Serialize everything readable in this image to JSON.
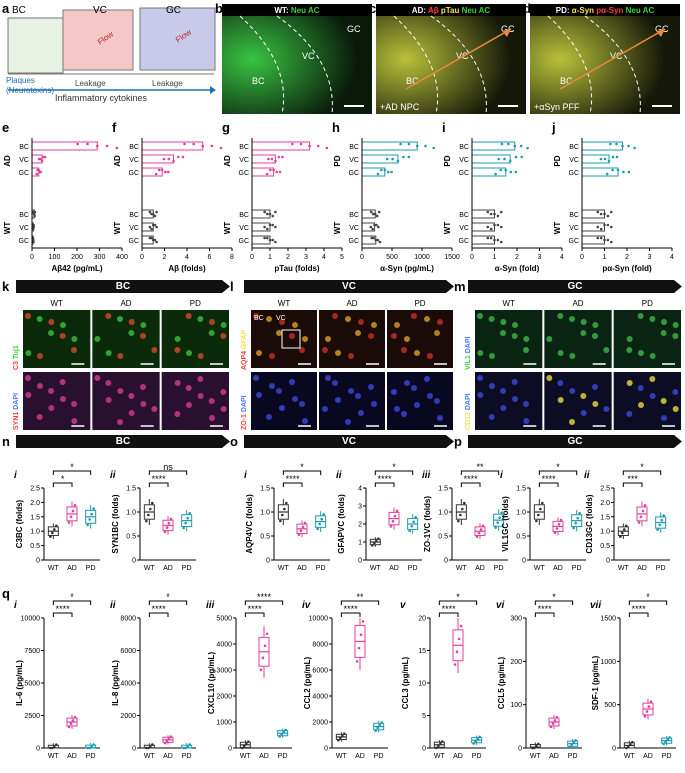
{
  "panel_a": {
    "letter": "a",
    "bc": "BC",
    "vc": "VC",
    "gc": "GC",
    "flow": "Flow",
    "plaques": "Plaques",
    "neurotoxins": "(Neurotoxins)",
    "leakage": "Leakage",
    "cytokines": "Inflammatory cytokines"
  },
  "micro_top": [
    {
      "letter": "b",
      "title_parts": [
        {
          "t": "WT:",
          "c": "#ffffff"
        },
        {
          "t": " Neu AC",
          "c": "#35d435"
        }
      ],
      "labels": [
        "BC",
        "VC",
        "GC"
      ],
      "note": ""
    },
    {
      "letter": "c",
      "title_parts": [
        {
          "t": "AD:",
          "c": "#ffffff"
        },
        {
          "t": " Aβ",
          "c": "#ff4040"
        },
        {
          "t": " pTau",
          "c": "#ffe24a"
        },
        {
          "t": " Neu AC",
          "c": "#35d435"
        }
      ],
      "labels": [
        "BC",
        "VC",
        "GC"
      ],
      "note": "+AD NPC"
    },
    {
      "letter": "d",
      "title_parts": [
        {
          "t": "PD:",
          "c": "#ffffff"
        },
        {
          "t": " α-Syn",
          "c": "#ffe24a"
        },
        {
          "t": " pα-Syn",
          "c": "#ff4040"
        },
        {
          "t": " Neu AC",
          "c": "#35d435"
        }
      ],
      "labels": [
        "BC",
        "VC",
        "GC"
      ],
      "note": "+αSyn PFF"
    }
  ],
  "bar_panels": [
    {
      "letter": "e",
      "group_top": "AD",
      "group_bottom": "WT",
      "xlabel": "Aβ42 (pg/mL)",
      "ticks": [
        "0",
        "100",
        "200",
        "300",
        "400"
      ],
      "color": "#e0409a"
    },
    {
      "letter": "f",
      "group_top": "AD",
      "group_bottom": "WT",
      "xlabel": "Aβ (folds)",
      "ticks": [
        "0",
        "2",
        "4",
        "6",
        "8"
      ],
      "color": "#e0409a"
    },
    {
      "letter": "g",
      "group_top": "AD",
      "group_bottom": "WT",
      "xlabel": "pTau (folds)",
      "ticks": [
        "0",
        "1",
        "2",
        "3",
        "4",
        "5"
      ],
      "color": "#e0409a"
    },
    {
      "letter": "h",
      "group_top": "PD",
      "group_bottom": "WT",
      "xlabel": "α-Syn (pg/mL)",
      "ticks": [
        "0",
        "500",
        "1000",
        "1500"
      ],
      "color": "#1e9ab0"
    },
    {
      "letter": "i",
      "group_top": "PD",
      "group_bottom": "WT",
      "xlabel": "α-Syn (fold)",
      "ticks": [
        "0",
        "1",
        "2",
        "3",
        "4"
      ],
      "color": "#1e9ab0"
    },
    {
      "letter": "j",
      "group_top": "PD",
      "group_bottom": "WT",
      "xlabel": "pα-Syn (fold)",
      "ticks": [
        "0",
        "1",
        "2",
        "3",
        "4"
      ],
      "color": "#1e9ab0"
    }
  ],
  "row_labels": [
    "BC",
    "VC",
    "GC"
  ],
  "chart_data": [
    {
      "type": "bar",
      "panel": "e",
      "categories": [
        "BC",
        "VC",
        "GC"
      ],
      "series": [
        {
          "name": "AD",
          "values": [
            290,
            45,
            30
          ]
        },
        {
          "name": "WT",
          "values": [
            10,
            6,
            5
          ]
        }
      ],
      "xlabel": "Aβ42 (pg/mL)",
      "xlim": [
        0,
        400
      ]
    },
    {
      "type": "bar",
      "panel": "f",
      "categories": [
        "BC",
        "VC",
        "GC"
      ],
      "series": [
        {
          "name": "AD",
          "values": [
            5.4,
            2.8,
            1.8
          ]
        },
        {
          "name": "WT",
          "values": [
            1,
            1,
            1
          ]
        }
      ],
      "xlabel": "Aβ (folds)",
      "xlim": [
        0,
        8
      ]
    },
    {
      "type": "bar",
      "panel": "g",
      "categories": [
        "BC",
        "VC",
        "GC"
      ],
      "series": [
        {
          "name": "AD",
          "values": [
            3.2,
            1.3,
            1.2
          ]
        },
        {
          "name": "WT",
          "values": [
            1,
            1,
            1
          ]
        }
      ],
      "xlabel": "pTau (folds)",
      "xlim": [
        0,
        5
      ]
    },
    {
      "type": "bar",
      "panel": "h",
      "categories": [
        "BC",
        "VC",
        "GC"
      ],
      "series": [
        {
          "name": "PD",
          "values": [
            920,
            600,
            380
          ]
        },
        {
          "name": "WT",
          "values": [
            220,
            210,
            230
          ]
        }
      ],
      "xlabel": "α-Syn (pg/mL)",
      "xlim": [
        0,
        1500
      ]
    },
    {
      "type": "bar",
      "panel": "i",
      "categories": [
        "BC",
        "VC",
        "GC"
      ],
      "series": [
        {
          "name": "PD",
          "values": [
            1.9,
            1.7,
            1.5
          ]
        },
        {
          "name": "WT",
          "values": [
            1,
            1,
            1
          ]
        }
      ],
      "xlabel": "α-Syn (fold)",
      "xlim": [
        0,
        4
      ]
    },
    {
      "type": "bar",
      "panel": "j",
      "categories": [
        "BC",
        "VC",
        "GC"
      ],
      "series": [
        {
          "name": "PD",
          "values": [
            1.8,
            1.2,
            1.6
          ]
        },
        {
          "name": "WT",
          "values": [
            1,
            1,
            1
          ]
        }
      ],
      "xlabel": "pα-Syn (fold)",
      "xlim": [
        0,
        4
      ]
    },
    {
      "type": "box",
      "panel": "n-i",
      "categories": [
        "WT",
        "AD",
        "PD"
      ],
      "values": [
        1.0,
        1.6,
        1.5
      ],
      "ylabel": "C3BC (folds)",
      "ylim": [
        0,
        2.5
      ],
      "ticks": [
        "0",
        "0.5",
        "1.0",
        "1.5",
        "2.0",
        "2.5"
      ]
    },
    {
      "type": "box",
      "panel": "n-ii",
      "categories": [
        "WT",
        "AD",
        "PD"
      ],
      "values": [
        1.0,
        0.72,
        0.82
      ],
      "ylabel": "SYN1BC (folds)",
      "ylim": [
        0,
        1.5
      ],
      "ticks": [
        "0",
        "0.5",
        "1.0",
        "1.5"
      ]
    },
    {
      "type": "box",
      "panel": "o-i",
      "categories": [
        "WT",
        "AD",
        "PD"
      ],
      "values": [
        1.0,
        0.65,
        0.8
      ],
      "ylabel": "AQP4VC (folds)",
      "ylim": [
        0,
        1.5
      ],
      "ticks": [
        "0",
        "0.5",
        "1.0",
        "1.5"
      ]
    },
    {
      "type": "box",
      "panel": "o-ii",
      "categories": [
        "WT",
        "AD",
        "PD"
      ],
      "values": [
        1.0,
        2.3,
        2.0
      ],
      "ylabel": "GFAPVC (folds)",
      "ylim": [
        0,
        4
      ],
      "ticks": [
        "0",
        "1",
        "2",
        "3",
        "4"
      ]
    },
    {
      "type": "box",
      "panel": "o-iii",
      "categories": [
        "WT",
        "AD",
        "PD"
      ],
      "values": [
        1.0,
        0.6,
        0.83
      ],
      "ylabel": "ZO-1VC (folds)",
      "ylim": [
        0,
        1.5
      ],
      "ticks": [
        "0",
        "0.5",
        "1.0",
        "1.5"
      ]
    },
    {
      "type": "box",
      "panel": "p-i",
      "categories": [
        "WT",
        "AD",
        "PD"
      ],
      "values": [
        1.0,
        0.7,
        0.82
      ],
      "ylabel": "VIL1GC (folds)",
      "ylim": [
        0,
        1.5
      ],
      "ticks": [
        "0",
        "0.5",
        "1.0",
        "1.5"
      ]
    },
    {
      "type": "box",
      "panel": "p-ii",
      "categories": [
        "WT",
        "AD",
        "PD"
      ],
      "values": [
        1.0,
        1.6,
        1.3
      ],
      "ylabel": "CD13GC (folds)",
      "ylim": [
        0,
        2.5
      ],
      "ticks": [
        "0",
        "0.5",
        "1.0",
        "1.5",
        "2.0",
        "2.5"
      ]
    },
    {
      "type": "box",
      "panel": "q-i",
      "categories": [
        "WT",
        "AD",
        "PD"
      ],
      "values": [
        10,
        2000,
        20
      ],
      "ylabel": "IL-6 (pg/mL)",
      "ylim": [
        0,
        10000
      ],
      "ticks": [
        "0",
        "2500",
        "5000",
        "7500",
        "10000"
      ]
    },
    {
      "type": "box",
      "panel": "q-ii",
      "categories": [
        "WT",
        "AD",
        "PD"
      ],
      "values": [
        10,
        500,
        10
      ],
      "ylabel": "IL-8 (pg/mL)",
      "ylim": [
        0,
        8000
      ],
      "ticks": [
        "0",
        "2000",
        "4000",
        "6000",
        "8000"
      ]
    },
    {
      "type": "box",
      "panel": "q-iii",
      "categories": [
        "WT",
        "AD",
        "PD"
      ],
      "values": [
        120,
        3700,
        570
      ],
      "ylabel": "CXCL10 (pg/mL)",
      "ylim": [
        0,
        5000
      ],
      "ticks": [
        "0",
        "1000",
        "2000",
        "3000",
        "4000",
        "5000"
      ]
    },
    {
      "type": "box",
      "panel": "q-iv",
      "categories": [
        "WT",
        "AD",
        "PD"
      ],
      "values": [
        850,
        8200,
        1650
      ],
      "ylabel": "CCL2 (pg/mL)",
      "ylim": [
        0,
        10000
      ],
      "ticks": [
        "0",
        "2000",
        "4000",
        "6000",
        "8000",
        "10000"
      ]
    },
    {
      "type": "box",
      "panel": "q-v",
      "categories": [
        "WT",
        "AD",
        "PD"
      ],
      "values": [
        0.5,
        15.8,
        1.2
      ],
      "ylabel": "CCL3 (pg/mL)",
      "ylim": [
        0,
        20
      ],
      "ticks": [
        "0",
        "5",
        "10",
        "15",
        "20"
      ]
    },
    {
      "type": "box",
      "panel": "q-vi",
      "categories": [
        "WT",
        "AD",
        "PD"
      ],
      "values": [
        2,
        60,
        10
      ],
      "ylabel": "CCL5 (pg/mL)",
      "ylim": [
        0,
        300
      ],
      "ticks": [
        "0",
        "100",
        "200",
        "300"
      ]
    },
    {
      "type": "box",
      "panel": "q-vii",
      "categories": [
        "WT",
        "AD",
        "PD"
      ],
      "values": [
        30,
        450,
        85
      ],
      "ylabel": "SDF-1 (pg/mL)",
      "ylim": [
        0,
        1500
      ],
      "ticks": [
        "0",
        "500",
        "1000",
        "1500"
      ]
    }
  ],
  "banners_k": [
    {
      "letter": "k",
      "title": "BC"
    },
    {
      "letter": "l",
      "title": "VC"
    },
    {
      "letter": "m",
      "title": "GC"
    }
  ],
  "cond_labels": [
    "WT",
    "AD",
    "PD"
  ],
  "k_stains": {
    "top": [
      {
        "t": "C3",
        "c": "#ff4040"
      },
      {
        "t": " Tuj1",
        "c": "#35d435"
      }
    ],
    "bottom": [
      {
        "t": "SYN1",
        "c": "#ff4040"
      },
      {
        "t": " DAPI",
        "c": "#4a7bff"
      }
    ]
  },
  "l_stains": {
    "top": [
      {
        "t": "AQP4",
        "c": "#ff4040"
      },
      {
        "t": " GFAP",
        "c": "#ffe24a"
      }
    ],
    "bottom": [
      {
        "t": "ZO-1",
        "c": "#ff4040"
      },
      {
        "t": " DAPI",
        "c": "#4a7bff"
      }
    ]
  },
  "m_stains": {
    "top": [
      {
        "t": "VIL1",
        "c": "#35d435"
      },
      {
        "t": " DAPI",
        "c": "#4a7bff"
      }
    ],
    "bottom": [
      {
        "t": "CD13",
        "c": "#ffe24a"
      },
      {
        "t": " DAPI",
        "c": "#4a7bff"
      }
    ]
  },
  "l_inset_labels": {
    "bc": "BC",
    "vc": "VC"
  },
  "banners_n": [
    {
      "letter": "n",
      "title": "BC"
    },
    {
      "letter": "o",
      "title": "VC"
    },
    {
      "letter": "p",
      "title": "GC"
    }
  ],
  "sig_n": [
    {
      "roman": "i",
      "sig": [
        "*",
        "*"
      ]
    },
    {
      "roman": "ii",
      "sig": [
        "****",
        "ns"
      ]
    },
    {
      "roman": "i",
      "sig": [
        "****",
        "*"
      ]
    },
    {
      "roman": "ii",
      "sig": [
        "****",
        "*"
      ]
    },
    {
      "roman": "iii",
      "sig": [
        "****",
        "**"
      ]
    },
    {
      "roman": "i",
      "sig": [
        "****",
        "*"
      ]
    },
    {
      "roman": "ii",
      "sig": [
        "***",
        "*"
      ]
    }
  ],
  "q_letter": "q",
  "sig_q": [
    {
      "roman": "i",
      "sig": [
        "****",
        "*"
      ]
    },
    {
      "roman": "ii",
      "sig": [
        "****",
        "*"
      ]
    },
    {
      "roman": "iii",
      "sig": [
        "****",
        "****"
      ]
    },
    {
      "roman": "iv",
      "sig": [
        "****",
        "**"
      ]
    },
    {
      "roman": "v",
      "sig": [
        "****",
        "*"
      ]
    },
    {
      "roman": "vi",
      "sig": [
        "****",
        "*"
      ]
    },
    {
      "roman": "vii",
      "sig": [
        "****",
        "*"
      ]
    }
  ]
}
